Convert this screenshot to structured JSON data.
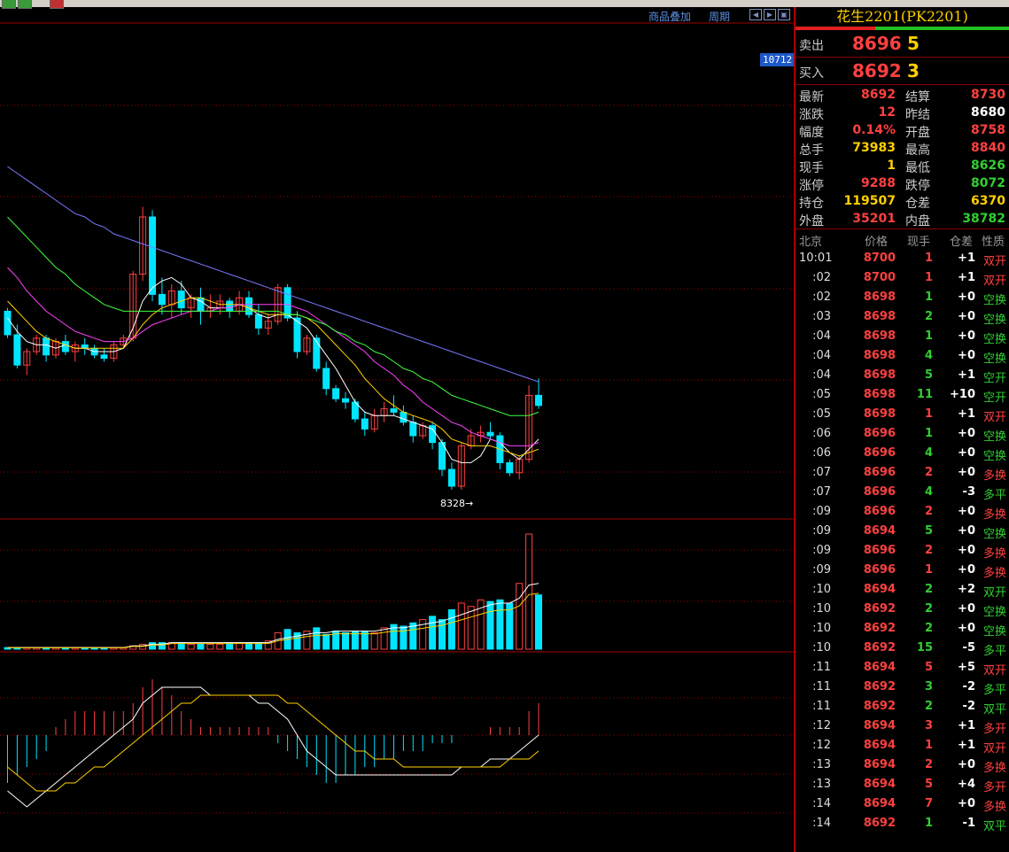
{
  "toolbar": {
    "overlay_label": "商品叠加",
    "period_label": "周期",
    "nav_icons": [
      "arrow-left-icon",
      "arrow-right-icon",
      "expand-icon"
    ]
  },
  "chart": {
    "price_tag": "10712",
    "low_label": "8328→",
    "colors": {
      "up": "#ff4040",
      "down": "#00e5ff",
      "ma5": "#ffffff",
      "ma10": "#ffd000",
      "ma20": "#ff40ff",
      "ma40": "#40ff40",
      "ma60": "#7a7aff",
      "grid": "#a00000"
    }
  },
  "chart_data": [
    {
      "type": "candlestick",
      "candles": [
        [
          8870,
          8880,
          8790,
          8800
        ],
        [
          8800,
          8830,
          8700,
          8710
        ],
        [
          8710,
          8760,
          8680,
          8750
        ],
        [
          8750,
          8800,
          8740,
          8790
        ],
        [
          8790,
          8800,
          8720,
          8740
        ],
        [
          8740,
          8790,
          8730,
          8780
        ],
        [
          8780,
          8800,
          8740,
          8750
        ],
        [
          8750,
          8780,
          8720,
          8770
        ],
        [
          8770,
          8790,
          8740,
          8760
        ],
        [
          8760,
          8770,
          8730,
          8740
        ],
        [
          8740,
          8760,
          8720,
          8730
        ],
        [
          8730,
          8780,
          8720,
          8770
        ],
        [
          8770,
          8800,
          8760,
          8790
        ],
        [
          8790,
          8990,
          8780,
          8980
        ],
        [
          8980,
          9180,
          8960,
          9150
        ],
        [
          9150,
          9170,
          8900,
          8920
        ],
        [
          8920,
          8970,
          8860,
          8890
        ],
        [
          8890,
          8950,
          8850,
          8930
        ],
        [
          8930,
          8960,
          8860,
          8880
        ],
        [
          8880,
          8920,
          8850,
          8910
        ],
        [
          8910,
          8940,
          8830,
          8870
        ],
        [
          8870,
          8920,
          8850,
          8880
        ],
        [
          8880,
          8920,
          8860,
          8900
        ],
        [
          8900,
          8910,
          8850,
          8870
        ],
        [
          8870,
          8930,
          8860,
          8910
        ],
        [
          8910,
          8930,
          8850,
          8860
        ],
        [
          8860,
          8890,
          8800,
          8820
        ],
        [
          8820,
          8860,
          8800,
          8840
        ],
        [
          8840,
          8950,
          8830,
          8940
        ],
        [
          8940,
          8950,
          8840,
          8850
        ],
        [
          8850,
          8870,
          8730,
          8750
        ],
        [
          8750,
          8800,
          8740,
          8790
        ],
        [
          8790,
          8800,
          8690,
          8700
        ],
        [
          8700,
          8720,
          8620,
          8640
        ],
        [
          8640,
          8650,
          8600,
          8610
        ],
        [
          8610,
          8630,
          8580,
          8600
        ],
        [
          8600,
          8610,
          8540,
          8550
        ],
        [
          8550,
          8570,
          8500,
          8520
        ],
        [
          8520,
          8580,
          8510,
          8560
        ],
        [
          8560,
          8600,
          8540,
          8580
        ],
        [
          8580,
          8620,
          8560,
          8570
        ],
        [
          8570,
          8590,
          8530,
          8540
        ],
        [
          8540,
          8560,
          8480,
          8500
        ],
        [
          8500,
          8540,
          8490,
          8530
        ],
        [
          8530,
          8540,
          8460,
          8480
        ],
        [
          8480,
          8490,
          8380,
          8400
        ],
        [
          8400,
          8420,
          8340,
          8350
        ],
        [
          8350,
          8480,
          8340,
          8470
        ],
        [
          8470,
          8520,
          8460,
          8500
        ],
        [
          8500,
          8530,
          8480,
          8510
        ],
        [
          8510,
          8540,
          8490,
          8500
        ],
        [
          8500,
          8510,
          8400,
          8420
        ],
        [
          8420,
          8430,
          8380,
          8390
        ],
        [
          8390,
          8440,
          8370,
          8430
        ],
        [
          8430,
          8650,
          8420,
          8620
        ],
        [
          8620,
          8670,
          8580,
          8590
        ]
      ],
      "ma_lines": {
        "ma5": [
          8850,
          8810,
          8780,
          8770,
          8770,
          8760,
          8770,
          8760,
          8760,
          8750,
          8750,
          8750,
          8760,
          8820,
          8900,
          8940,
          8960,
          8970,
          8950,
          8910,
          8900,
          8880,
          8880,
          8880,
          8890,
          8880,
          8860,
          8850,
          8860,
          8860,
          8840,
          8820,
          8780,
          8740,
          8700,
          8650,
          8600,
          8570,
          8560,
          8560,
          8560,
          8550,
          8540,
          8530,
          8520,
          8480,
          8430,
          8420,
          8420,
          8440,
          8490,
          8480,
          8450,
          8430,
          8460,
          8490
        ],
        "ma10": [
          8900,
          8870,
          8840,
          8810,
          8790,
          8780,
          8770,
          8760,
          8760,
          8760,
          8760,
          8760,
          8760,
          8790,
          8830,
          8860,
          8880,
          8890,
          8900,
          8910,
          8910,
          8900,
          8890,
          8890,
          8890,
          8880,
          8870,
          8860,
          8860,
          8860,
          8860,
          8850,
          8830,
          8800,
          8770,
          8740,
          8710,
          8670,
          8640,
          8610,
          8590,
          8570,
          8560,
          8550,
          8540,
          8520,
          8490,
          8480,
          8470,
          8470,
          8470,
          8460,
          8450,
          8440,
          8450,
          8460
        ],
        "ma20": [
          9000,
          8970,
          8930,
          8900,
          8870,
          8850,
          8830,
          8810,
          8800,
          8790,
          8780,
          8780,
          8780,
          8790,
          8810,
          8830,
          8840,
          8850,
          8860,
          8870,
          8870,
          8870,
          8880,
          8880,
          8890,
          8890,
          8890,
          8890,
          8890,
          8890,
          8880,
          8870,
          8850,
          8830,
          8810,
          8790,
          8770,
          8750,
          8720,
          8700,
          8680,
          8650,
          8630,
          8600,
          8580,
          8560,
          8540,
          8530,
          8510,
          8500,
          8490,
          8480,
          8470,
          8470,
          8470,
          8480
        ],
        "ma40": [
          9150,
          9120,
          9090,
          9060,
          9030,
          9000,
          8980,
          8950,
          8930,
          8910,
          8890,
          8880,
          8870,
          8870,
          8870,
          8870,
          8870,
          8870,
          8870,
          8870,
          8870,
          8870,
          8870,
          8870,
          8870,
          8870,
          8870,
          8870,
          8870,
          8860,
          8860,
          8850,
          8840,
          8830,
          8810,
          8800,
          8780,
          8770,
          8750,
          8740,
          8720,
          8700,
          8690,
          8670,
          8660,
          8640,
          8620,
          8610,
          8600,
          8590,
          8580,
          8570,
          8560,
          8560,
          8560,
          8570
        ],
        "ma60": [
          9300,
          9280,
          9260,
          9240,
          9220,
          9200,
          9180,
          9160,
          9150,
          9130,
          9120,
          9100,
          9090,
          9080,
          9070,
          9060,
          9050,
          9040,
          9030,
          9020,
          9010,
          9000,
          8990,
          8980,
          8970,
          8960,
          8950,
          8940,
          8930,
          8920,
          8910,
          8900,
          8890,
          8880,
          8870,
          8860,
          8850,
          8840,
          8830,
          8820,
          8810,
          8800,
          8790,
          8780,
          8770,
          8760,
          8750,
          8740,
          8730,
          8720,
          8710,
          8700,
          8690,
          8680,
          8670,
          8660
        ]
      }
    },
    {
      "type": "bar",
      "name": "volume",
      "values": [
        1,
        1,
        1,
        1,
        1,
        1,
        1,
        1,
        1,
        1,
        1,
        1,
        1,
        2,
        3,
        4,
        4,
        4,
        4,
        3,
        3,
        3,
        3,
        4,
        4,
        4,
        4,
        5,
        10,
        12,
        10,
        11,
        13,
        9,
        11,
        10,
        11,
        11,
        10,
        13,
        15,
        14,
        16,
        18,
        20,
        18,
        24,
        28,
        26,
        30,
        29,
        30,
        28,
        40,
        70,
        33
      ],
      "ma_values": [
        1,
        1,
        1,
        1,
        1,
        1,
        1,
        1,
        1,
        1,
        1,
        1,
        1,
        2,
        2,
        3,
        3,
        4,
        4,
        4,
        4,
        4,
        4,
        4,
        4,
        4,
        4,
        4,
        6,
        7,
        8,
        9,
        10,
        10,
        11,
        11,
        11,
        11,
        11,
        12,
        13,
        13,
        14,
        15,
        16,
        17,
        19,
        21,
        23,
        25,
        27,
        28,
        28,
        31,
        39,
        40
      ]
    },
    {
      "type": "bar",
      "name": "macd",
      "values": [
        -6,
        -5,
        -4,
        -3,
        -2,
        1,
        2,
        3,
        3,
        3,
        3,
        3,
        3,
        4,
        6,
        7,
        6,
        5,
        3,
        2,
        1,
        1,
        1,
        1,
        1,
        1,
        1,
        1,
        -1,
        -2,
        -3,
        -4,
        -5,
        -6,
        -6,
        -5,
        -5,
        -4,
        -4,
        -3,
        -3,
        -2,
        -2,
        -2,
        -1,
        -1,
        -1,
        0,
        0,
        0,
        1,
        1,
        1,
        1,
        3,
        4
      ],
      "dif": [
        -7,
        -8,
        -9,
        -8,
        -7,
        -6,
        -5,
        -4,
        -3,
        -2,
        -1,
        0,
        1,
        2,
        4,
        5,
        6,
        6,
        6,
        6,
        6,
        5,
        5,
        5,
        5,
        5,
        4,
        4,
        3,
        2,
        0,
        -2,
        -3,
        -4,
        -5,
        -5,
        -5,
        -5,
        -5,
        -5,
        -5,
        -5,
        -5,
        -5,
        -5,
        -5,
        -5,
        -4,
        -4,
        -4,
        -3,
        -3,
        -3,
        -2,
        -1,
        0
      ],
      "dea": [
        -4,
        -5,
        -6,
        -7,
        -7,
        -7,
        -6,
        -6,
        -5,
        -4,
        -4,
        -3,
        -2,
        -1,
        0,
        1,
        2,
        3,
        4,
        4,
        5,
        5,
        5,
        5,
        5,
        5,
        5,
        5,
        5,
        4,
        4,
        3,
        2,
        1,
        0,
        -1,
        -2,
        -2,
        -3,
        -3,
        -3,
        -4,
        -4,
        -4,
        -4,
        -4,
        -4,
        -4,
        -4,
        -4,
        -4,
        -4,
        -3,
        -3,
        -3,
        -2
      ]
    }
  ],
  "panel": {
    "title": "花生2201(PK2201)",
    "ask": {
      "label": "卖出",
      "price": "8696",
      "volume": "5"
    },
    "bid": {
      "label": "买入",
      "price": "8692",
      "volume": "3"
    },
    "stats": [
      {
        "l1": "最新",
        "v1": "8692",
        "c1": "red",
        "l2": "结算",
        "v2": "8730",
        "c2": "red"
      },
      {
        "l1": "涨跌",
        "v1": "12",
        "c1": "red",
        "l2": "昨结",
        "v2": "8680",
        "c2": "white"
      },
      {
        "l1": "幅度",
        "v1": "0.14%",
        "c1": "red",
        "l2": "开盘",
        "v2": "8758",
        "c2": "red"
      },
      {
        "l1": "总手",
        "v1": "73983",
        "c1": "yellow",
        "l2": "最高",
        "v2": "8840",
        "c2": "red"
      },
      {
        "l1": "现手",
        "v1": "1",
        "c1": "yellow",
        "l2": "最低",
        "v2": "8626",
        "c2": "green"
      },
      {
        "l1": "涨停",
        "v1": "9288",
        "c1": "red",
        "l2": "跌停",
        "v2": "8072",
        "c2": "green"
      },
      {
        "l1": "持仓",
        "v1": "119507",
        "c1": "yellow",
        "l2": "仓差",
        "v2": "6370",
        "c2": "yellow"
      },
      {
        "l1": "外盘",
        "v1": "35201",
        "c1": "red",
        "l2": "内盘",
        "v2": "38782",
        "c2": "green"
      }
    ],
    "ticks_header": {
      "time": "北京",
      "price": "价格",
      "vol": "现手",
      "oi": "仓差",
      "nature": "性质"
    },
    "ticks": [
      {
        "t": "10:01",
        "p": "8700",
        "v": "1",
        "vc": "red",
        "oi": "+1",
        "n": "双开",
        "nc": "red"
      },
      {
        "t": ":02",
        "p": "8700",
        "v": "1",
        "vc": "red",
        "oi": "+1",
        "n": "双开",
        "nc": "red"
      },
      {
        "t": ":02",
        "p": "8698",
        "v": "1",
        "vc": "green",
        "oi": "+0",
        "n": "空换",
        "nc": "green"
      },
      {
        "t": ":03",
        "p": "8698",
        "v": "2",
        "vc": "green",
        "oi": "+0",
        "n": "空换",
        "nc": "green"
      },
      {
        "t": ":04",
        "p": "8698",
        "v": "1",
        "vc": "green",
        "oi": "+0",
        "n": "空换",
        "nc": "green"
      },
      {
        "t": ":04",
        "p": "8698",
        "v": "4",
        "vc": "green",
        "oi": "+0",
        "n": "空换",
        "nc": "green"
      },
      {
        "t": ":04",
        "p": "8698",
        "v": "5",
        "vc": "green",
        "oi": "+1",
        "n": "空开",
        "nc": "green"
      },
      {
        "t": ":05",
        "p": "8698",
        "v": "11",
        "vc": "green",
        "oi": "+10",
        "n": "空开",
        "nc": "green"
      },
      {
        "t": ":05",
        "p": "8698",
        "v": "1",
        "vc": "red",
        "oi": "+1",
        "n": "双开",
        "nc": "red"
      },
      {
        "t": ":06",
        "p": "8696",
        "v": "1",
        "vc": "green",
        "oi": "+0",
        "n": "空换",
        "nc": "green"
      },
      {
        "t": ":06",
        "p": "8696",
        "v": "4",
        "vc": "green",
        "oi": "+0",
        "n": "空换",
        "nc": "green"
      },
      {
        "t": ":07",
        "p": "8696",
        "v": "2",
        "vc": "red",
        "oi": "+0",
        "n": "多换",
        "nc": "red"
      },
      {
        "t": ":07",
        "p": "8696",
        "v": "4",
        "vc": "green",
        "oi": "-3",
        "n": "多平",
        "nc": "green"
      },
      {
        "t": ":09",
        "p": "8696",
        "v": "2",
        "vc": "red",
        "oi": "+0",
        "n": "多换",
        "nc": "red"
      },
      {
        "t": ":09",
        "p": "8694",
        "v": "5",
        "vc": "green",
        "oi": "+0",
        "n": "空换",
        "nc": "green"
      },
      {
        "t": ":09",
        "p": "8696",
        "v": "2",
        "vc": "red",
        "oi": "+0",
        "n": "多换",
        "nc": "red"
      },
      {
        "t": ":09",
        "p": "8696",
        "v": "1",
        "vc": "red",
        "oi": "+0",
        "n": "多换",
        "nc": "red"
      },
      {
        "t": ":10",
        "p": "8694",
        "v": "2",
        "vc": "green",
        "oi": "+2",
        "n": "双开",
        "nc": "green"
      },
      {
        "t": ":10",
        "p": "8692",
        "v": "2",
        "vc": "green",
        "oi": "+0",
        "n": "空换",
        "nc": "green"
      },
      {
        "t": ":10",
        "p": "8692",
        "v": "2",
        "vc": "green",
        "oi": "+0",
        "n": "空换",
        "nc": "green"
      },
      {
        "t": ":10",
        "p": "8692",
        "v": "15",
        "vc": "green",
        "oi": "-5",
        "n": "多平",
        "nc": "green"
      },
      {
        "t": ":11",
        "p": "8694",
        "v": "5",
        "vc": "red",
        "oi": "+5",
        "n": "双开",
        "nc": "red"
      },
      {
        "t": ":11",
        "p": "8692",
        "v": "3",
        "vc": "green",
        "oi": "-2",
        "n": "多平",
        "nc": "green"
      },
      {
        "t": ":11",
        "p": "8692",
        "v": "2",
        "vc": "green",
        "oi": "-2",
        "n": "双平",
        "nc": "green"
      },
      {
        "t": ":12",
        "p": "8694",
        "v": "3",
        "vc": "red",
        "oi": "+1",
        "n": "多开",
        "nc": "red"
      },
      {
        "t": ":12",
        "p": "8694",
        "v": "1",
        "vc": "red",
        "oi": "+1",
        "n": "双开",
        "nc": "red"
      },
      {
        "t": ":13",
        "p": "8694",
        "v": "2",
        "vc": "red",
        "oi": "+0",
        "n": "多换",
        "nc": "red"
      },
      {
        "t": ":13",
        "p": "8694",
        "v": "5",
        "vc": "red",
        "oi": "+4",
        "n": "多开",
        "nc": "red"
      },
      {
        "t": ":14",
        "p": "8694",
        "v": "7",
        "vc": "red",
        "oi": "+0",
        "n": "多换",
        "nc": "red"
      },
      {
        "t": ":14",
        "p": "8692",
        "v": "1",
        "vc": "green",
        "oi": "-1",
        "n": "双平",
        "nc": "green"
      }
    ]
  }
}
